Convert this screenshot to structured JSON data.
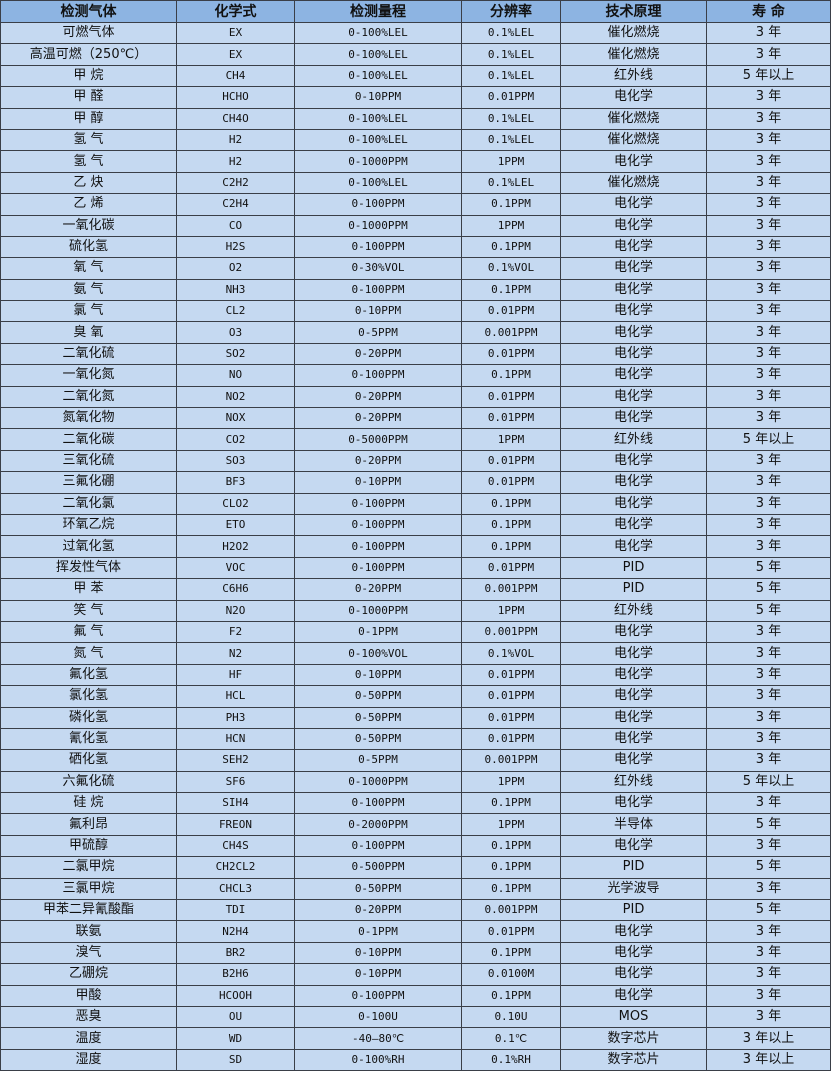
{
  "headers": [
    "检测气体",
    "化学式",
    "检测量程",
    "分辨率",
    "技术原理",
    "寿 命"
  ],
  "rows": [
    [
      "可燃气体",
      "EX",
      "0-100%LEL",
      "0.1%LEL",
      "催化燃烧",
      "3 年"
    ],
    [
      "高温可燃（250℃）",
      "EX",
      "0-100%LEL",
      "0.1%LEL",
      "催化燃烧",
      "3 年"
    ],
    [
      "甲 烷",
      "CH4",
      "0-100%LEL",
      "0.1%LEL",
      "红外线",
      "5 年以上"
    ],
    [
      "甲 醛",
      "HCHO",
      "0-10PPM",
      "0.01PPM",
      "电化学",
      "3 年"
    ],
    [
      "甲 醇",
      "CH4O",
      "0-100%LEL",
      "0.1%LEL",
      "催化燃烧",
      "3 年"
    ],
    [
      "氢 气",
      "H2",
      "0-100%LEL",
      "0.1%LEL",
      "催化燃烧",
      "3 年"
    ],
    [
      "氢 气",
      "H2",
      "0-1000PPM",
      "1PPM",
      "电化学",
      "3 年"
    ],
    [
      "乙 炔",
      "C2H2",
      "0-100%LEL",
      "0.1%LEL",
      "催化燃烧",
      "3 年"
    ],
    [
      "乙 烯",
      "C2H4",
      "0-100PPM",
      "0.1PPM",
      "电化学",
      "3 年"
    ],
    [
      "一氧化碳",
      "CO",
      "0-1000PPM",
      "1PPM",
      "电化学",
      "3 年"
    ],
    [
      "硫化氢",
      "H2S",
      "0-100PPM",
      "0.1PPM",
      "电化学",
      "3 年"
    ],
    [
      "氧 气",
      "O2",
      "0-30%VOL",
      "0.1%VOL",
      "电化学",
      "3 年"
    ],
    [
      "氨 气",
      "NH3",
      "0-100PPM",
      "0.1PPM",
      "电化学",
      "3 年"
    ],
    [
      "氯 气",
      "CL2",
      "0-10PPM",
      "0.01PPM",
      "电化学",
      "3 年"
    ],
    [
      "臭 氧",
      "O3",
      "0-5PPM",
      "0.001PPM",
      "电化学",
      "3 年"
    ],
    [
      "二氧化硫",
      "SO2",
      "0-20PPM",
      "0.01PPM",
      "电化学",
      "3 年"
    ],
    [
      "一氧化氮",
      "NO",
      "0-100PPM",
      "0.1PPM",
      "电化学",
      "3 年"
    ],
    [
      "二氧化氮",
      "NO2",
      "0-20PPM",
      "0.01PPM",
      "电化学",
      "3 年"
    ],
    [
      "氮氧化物",
      "NOX",
      "0-20PPM",
      "0.01PPM",
      "电化学",
      "3 年"
    ],
    [
      "二氧化碳",
      "CO2",
      "0-5000PPM",
      "1PPM",
      "红外线",
      "5 年以上"
    ],
    [
      "三氧化硫",
      "SO3",
      "0-20PPM",
      "0.01PPM",
      "电化学",
      "3 年"
    ],
    [
      "三氟化硼",
      "BF3",
      "0-10PPM",
      "0.01PPM",
      "电化学",
      "3 年"
    ],
    [
      "二氧化氯",
      "CLO2",
      "0-100PPM",
      "0.1PPM",
      "电化学",
      "3 年"
    ],
    [
      "环氧乙烷",
      "ETO",
      "0-100PPM",
      "0.1PPM",
      "电化学",
      "3 年"
    ],
    [
      "过氧化氢",
      "H2O2",
      "0-100PPM",
      "0.1PPM",
      "电化学",
      "3 年"
    ],
    [
      "挥发性气体",
      "VOC",
      "0-100PPM",
      "0.01PPM",
      "PID",
      "5 年"
    ],
    [
      "甲 苯",
      "C6H6",
      "0-20PPM",
      "0.001PPM",
      "PID",
      "5 年"
    ],
    [
      "笑 气",
      "N2O",
      "0-1000PPM",
      "1PPM",
      "红外线",
      "5 年"
    ],
    [
      "氟 气",
      "F2",
      "0-1PPM",
      "0.001PPM",
      "电化学",
      "3 年"
    ],
    [
      "氮 气",
      "N2",
      "0-100%VOL",
      "0.1%VOL",
      "电化学",
      "3 年"
    ],
    [
      "氟化氢",
      "HF",
      "0-10PPM",
      "0.01PPM",
      "电化学",
      "3 年"
    ],
    [
      "氯化氢",
      "HCL",
      "0-50PPM",
      "0.01PPM",
      "电化学",
      "3 年"
    ],
    [
      "磷化氢",
      "PH3",
      "0-50PPM",
      "0.01PPM",
      "电化学",
      "3 年"
    ],
    [
      "氰化氢",
      "HCN",
      "0-50PPM",
      "0.01PPM",
      "电化学",
      "3 年"
    ],
    [
      "硒化氢",
      "SEH2",
      "0-5PPM",
      "0.001PPM",
      "电化学",
      "3 年"
    ],
    [
      "六氟化硫",
      "SF6",
      "0-1000PPM",
      "1PPM",
      "红外线",
      "5 年以上"
    ],
    [
      "硅 烷",
      "SIH4",
      "0-100PPM",
      "0.1PPM",
      "电化学",
      "3 年"
    ],
    [
      "氟利昂",
      "FREON",
      "0-2000PPM",
      "1PPM",
      "半导体",
      "5 年"
    ],
    [
      "甲硫醇",
      "CH4S",
      "0-100PPM",
      "0.1PPM",
      "电化学",
      "3 年"
    ],
    [
      "二氯甲烷",
      "CH2CL2",
      "0-500PPM",
      "0.1PPM",
      "PID",
      "5 年"
    ],
    [
      "三氯甲烷",
      "CHCL3",
      "0-50PPM",
      "0.1PPM",
      "光学波导",
      "3 年"
    ],
    [
      "甲苯二异氰酸酯",
      "TDI",
      "0-20PPM",
      "0.001PPM",
      "PID",
      "5 年"
    ],
    [
      "联氨",
      "N2H4",
      "0-1PPM",
      "0.01PPM",
      "电化学",
      "3 年"
    ],
    [
      "溴气",
      "BR2",
      "0-10PPM",
      "0.1PPM",
      "电化学",
      "3 年"
    ],
    [
      "乙硼烷",
      "B2H6",
      "0-10PPM",
      "0.0100M",
      "电化学",
      "3 年"
    ],
    [
      "甲酸",
      "HCOOH",
      "0-100PPM",
      "0.1PPM",
      "电化学",
      "3 年"
    ],
    [
      "恶臭",
      "OU",
      "0-100U",
      "0.10U",
      "MOS",
      "3 年"
    ],
    [
      "温度",
      "WD",
      "-40—80℃",
      "0.1℃",
      "数字芯片",
      "3 年以上"
    ],
    [
      "湿度",
      "SD",
      "0-100%RH",
      "0.1%RH",
      "数字芯片",
      "3 年以上"
    ]
  ],
  "colors": {
    "header_bg": "#8db4e2",
    "row_bg": "#c5d9f1",
    "border": "#3a3f48"
  }
}
